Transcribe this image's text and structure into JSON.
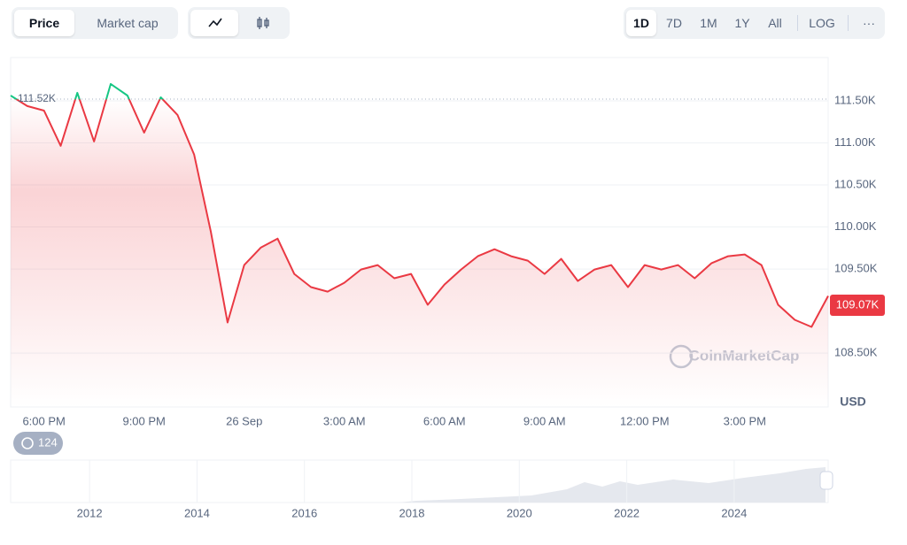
{
  "toolbar": {
    "tabs": [
      "Price",
      "Market cap"
    ],
    "ranges": [
      "1D",
      "7D",
      "1M",
      "1Y",
      "All",
      "LOG"
    ],
    "more": "···"
  },
  "chart_data": {
    "type": "line",
    "categories": [
      null,
      null,
      "6:00 PM",
      null,
      null,
      null,
      null,
      null,
      "9:00 PM",
      null,
      null,
      null,
      null,
      null,
      "26 Sep",
      null,
      null,
      null,
      null,
      null,
      "3:00 AM",
      null,
      null,
      null,
      null,
      null,
      "6:00 AM",
      null,
      null,
      null,
      null,
      null,
      "9:00 AM",
      null,
      null,
      null,
      null,
      null,
      "12:00 PM",
      null,
      null,
      null,
      null,
      null,
      "3:00 PM",
      null,
      null,
      null,
      null,
      null
    ],
    "values": [
      111563,
      111437,
      111384,
      110965,
      111595,
      111017,
      111700,
      111563,
      111122,
      111542,
      111332,
      110860,
      109946,
      108865,
      109547,
      109757,
      109862,
      109442,
      109285,
      109232,
      109337,
      109495,
      109547,
      109390,
      109442,
      109075,
      109316,
      109495,
      109652,
      109736,
      109652,
      109600,
      109442,
      109621,
      109358,
      109495,
      109547,
      109285,
      109547,
      109495,
      109547,
      109390,
      109568,
      109652,
      109673,
      109547,
      109075,
      108896,
      108812,
      109180
    ],
    "color": "#ea3943",
    "color_above": "#16c784",
    "open_price": {
      "value": 111520,
      "label": "111.52K"
    },
    "last_price": {
      "value": 109070,
      "label": "109.07K"
    },
    "ylim": [
      107860,
      112015
    ],
    "yticks": [
      {
        "value": 108500,
        "label": "108.50K"
      },
      {
        "value": 109500,
        "label": "109.50K"
      },
      {
        "value": 110000,
        "label": "110.00K"
      },
      {
        "value": 110500,
        "label": "110.50K"
      },
      {
        "value": 111000,
        "label": "111.00K"
      },
      {
        "value": 111500,
        "label": "111.50K"
      }
    ],
    "ylabel": "USD",
    "grid": true
  },
  "badge": "124",
  "watermark": "CoinMarketCap",
  "navigator": {
    "xlim": [
      2010.53,
      2025.75
    ],
    "xticks": [
      2012,
      2014,
      2016,
      2018,
      2020,
      2022,
      2024
    ]
  }
}
